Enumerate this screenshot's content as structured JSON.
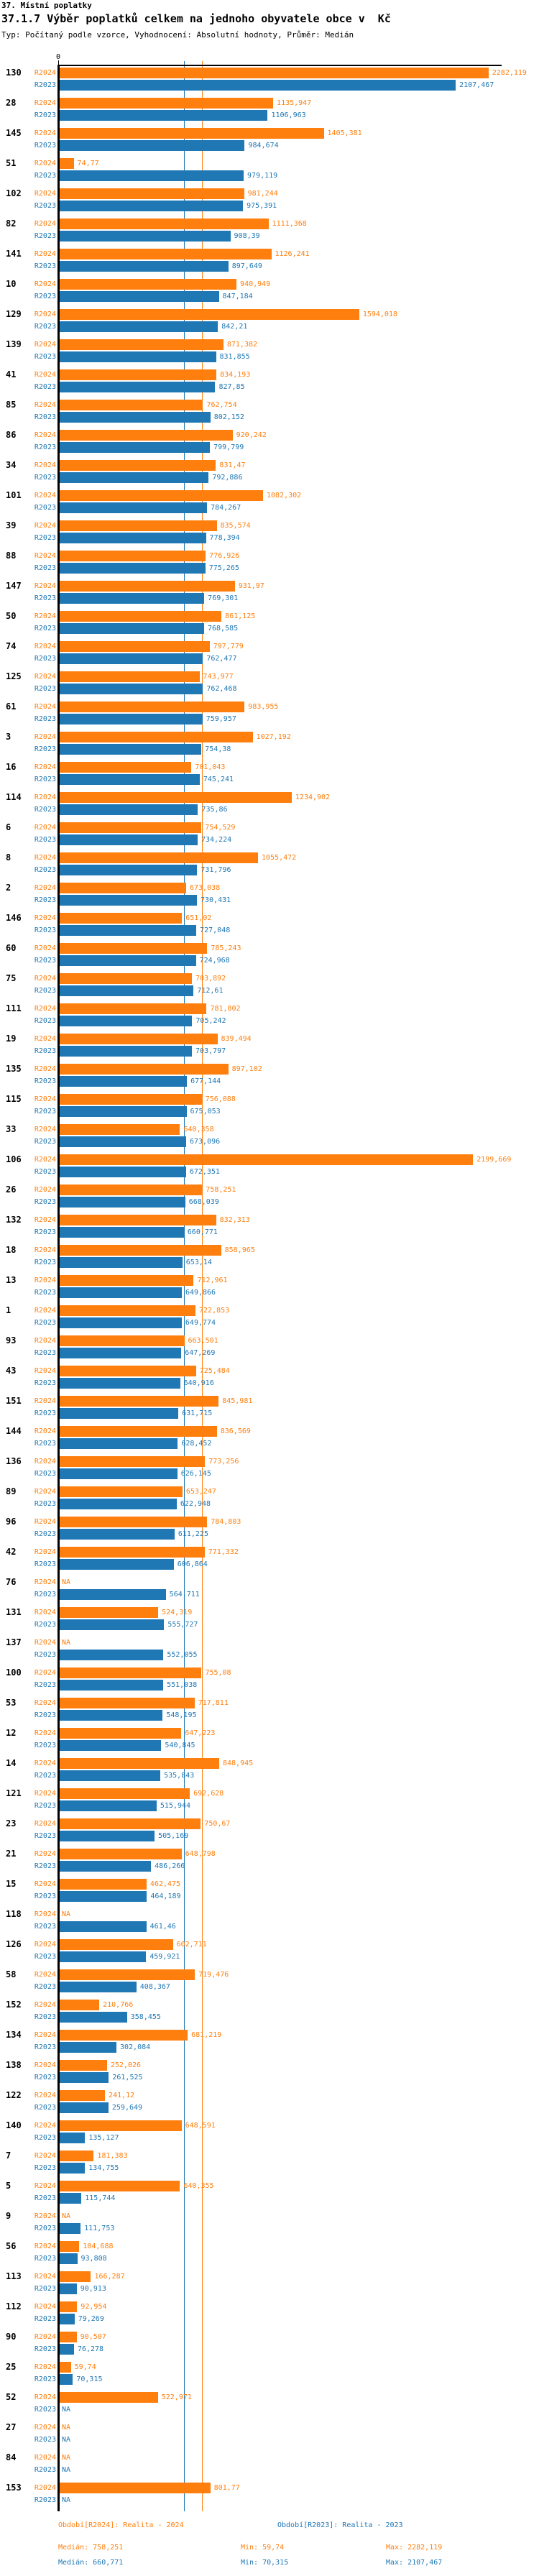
{
  "header": {
    "title1": "37. Místní poplatky",
    "title2": "37.1.7 Výběr poplatků celkem na jednoho obyvatele obce v  Kč",
    "subtitle": "Typ: Počítaný podle vzorce, Vyhodnocení: Absolutní hodnoty, Průměr: Medián"
  },
  "chart_data": {
    "type": "bar",
    "orientation": "horizontal",
    "x_axis": {
      "zero_label": "0",
      "xlim": [
        0,
        2330
      ],
      "grid": false
    },
    "series_labels": {
      "r2024": "R2024",
      "r2023": "R2023"
    },
    "colors": {
      "r2024": "#ff7f0e",
      "r2023": "#1f77b4"
    },
    "median_lines": {
      "r2024": 758.251,
      "r2023": 660.771
    },
    "na_text": "NA",
    "groups": [
      {
        "id": "130",
        "r2024": "2282,119",
        "r2023": "2107,467"
      },
      {
        "id": "28",
        "r2024": "1135,947",
        "r2023": "1106,963"
      },
      {
        "id": "145",
        "r2024": "1405,381",
        "r2023": "984,674"
      },
      {
        "id": "51",
        "r2024": "74,77",
        "r2023": "979,119"
      },
      {
        "id": "102",
        "r2024": "981,244",
        "r2023": "975,391"
      },
      {
        "id": "82",
        "r2024": "1111,368",
        "r2023": "908,39"
      },
      {
        "id": "141",
        "r2024": "1126,241",
        "r2023": "897,649"
      },
      {
        "id": "10",
        "r2024": "940,949",
        "r2023": "847,184"
      },
      {
        "id": "129",
        "r2024": "1594,018",
        "r2023": "842,21"
      },
      {
        "id": "139",
        "r2024": "871,382",
        "r2023": "831,855"
      },
      {
        "id": "41",
        "r2024": "834,193",
        "r2023": "827,85"
      },
      {
        "id": "85",
        "r2024": "762,754",
        "r2023": "802,152"
      },
      {
        "id": "86",
        "r2024": "920,242",
        "r2023": "799,799"
      },
      {
        "id": "34",
        "r2024": "831,47",
        "r2023": "792,886"
      },
      {
        "id": "101",
        "r2024": "1082,302",
        "r2023": "784,267"
      },
      {
        "id": "39",
        "r2024": "835,574",
        "r2023": "778,394"
      },
      {
        "id": "88",
        "r2024": "776,926",
        "r2023": "775,265"
      },
      {
        "id": "147",
        "r2024": "931,97",
        "r2023": "769,301"
      },
      {
        "id": "50",
        "r2024": "861,125",
        "r2023": "768,585"
      },
      {
        "id": "74",
        "r2024": "797,779",
        "r2023": "762,477"
      },
      {
        "id": "125",
        "r2024": "743,977",
        "r2023": "762,468"
      },
      {
        "id": "61",
        "r2024": "983,955",
        "r2023": "759,957"
      },
      {
        "id": "3",
        "r2024": "1027,192",
        "r2023": "754,38"
      },
      {
        "id": "16",
        "r2024": "701,043",
        "r2023": "745,241"
      },
      {
        "id": "114",
        "r2024": "1234,902",
        "r2023": "735,86"
      },
      {
        "id": "6",
        "r2024": "754,529",
        "r2023": "734,224"
      },
      {
        "id": "8",
        "r2024": "1055,472",
        "r2023": "731,796"
      },
      {
        "id": "2",
        "r2024": "673,038",
        "r2023": "730,431"
      },
      {
        "id": "146",
        "r2024": "651,02",
        "r2023": "727,048"
      },
      {
        "id": "60",
        "r2024": "785,243",
        "r2023": "724,968"
      },
      {
        "id": "75",
        "r2024": "703,892",
        "r2023": "712,61"
      },
      {
        "id": "111",
        "r2024": "781,802",
        "r2023": "705,242"
      },
      {
        "id": "19",
        "r2024": "839,494",
        "r2023": "703,797"
      },
      {
        "id": "135",
        "r2024": "897,102",
        "r2023": "677,144"
      },
      {
        "id": "115",
        "r2024": "756,088",
        "r2023": "675,053"
      },
      {
        "id": "33",
        "r2024": "640,358",
        "r2023": "673,096"
      },
      {
        "id": "106",
        "r2024": "2199,669",
        "r2023": "672,351"
      },
      {
        "id": "26",
        "r2024": "758,251",
        "r2023": "668,039"
      },
      {
        "id": "132",
        "r2024": "832,313",
        "r2023": "660,771"
      },
      {
        "id": "18",
        "r2024": "858,965",
        "r2023": "653,14"
      },
      {
        "id": "13",
        "r2024": "712,961",
        "r2023": "649,866"
      },
      {
        "id": "1",
        "r2024": "722,853",
        "r2023": "649,774"
      },
      {
        "id": "93",
        "r2024": "663,501",
        "r2023": "647,269"
      },
      {
        "id": "43",
        "r2024": "725,484",
        "r2023": "640,916"
      },
      {
        "id": "151",
        "r2024": "845,981",
        "r2023": "631,715"
      },
      {
        "id": "144",
        "r2024": "836,569",
        "r2023": "628,452"
      },
      {
        "id": "136",
        "r2024": "773,256",
        "r2023": "626,145"
      },
      {
        "id": "89",
        "r2024": "653,247",
        "r2023": "622,948"
      },
      {
        "id": "96",
        "r2024": "784,803",
        "r2023": "611,225"
      },
      {
        "id": "42",
        "r2024": "771,332",
        "r2023": "606,864"
      },
      {
        "id": "76",
        "r2024": "NA",
        "r2023": "564,711"
      },
      {
        "id": "131",
        "r2024": "524,319",
        "r2023": "555,727"
      },
      {
        "id": "137",
        "r2024": "NA",
        "r2023": "552,055"
      },
      {
        "id": "100",
        "r2024": "755,08",
        "r2023": "551,038"
      },
      {
        "id": "53",
        "r2024": "717,811",
        "r2023": "548,195"
      },
      {
        "id": "12",
        "r2024": "647,223",
        "r2023": "540,845"
      },
      {
        "id": "14",
        "r2024": "848,945",
        "r2023": "535,843"
      },
      {
        "id": "121",
        "r2024": "692,628",
        "r2023": "515,944"
      },
      {
        "id": "23",
        "r2024": "750,67",
        "r2023": "505,169"
      },
      {
        "id": "21",
        "r2024": "648,798",
        "r2023": "486,266"
      },
      {
        "id": "15",
        "r2024": "462,475",
        "r2023": "464,189"
      },
      {
        "id": "118",
        "r2024": "NA",
        "r2023": "461,46"
      },
      {
        "id": "126",
        "r2024": "602,711",
        "r2023": "459,921"
      },
      {
        "id": "58",
        "r2024": "719,476",
        "r2023": "408,367"
      },
      {
        "id": "152",
        "r2024": "210,766",
        "r2023": "358,455"
      },
      {
        "id": "134",
        "r2024": "681,219",
        "r2023": "302,084"
      },
      {
        "id": "138",
        "r2024": "252,026",
        "r2023": "261,525"
      },
      {
        "id": "122",
        "r2024": "241,12",
        "r2023": "259,649"
      },
      {
        "id": "140",
        "r2024": "648,591",
        "r2023": "135,127"
      },
      {
        "id": "7",
        "r2024": "181,383",
        "r2023": "134,755"
      },
      {
        "id": "5",
        "r2024": "640,355",
        "r2023": "115,744"
      },
      {
        "id": "9",
        "r2024": "NA",
        "r2023": "111,753"
      },
      {
        "id": "56",
        "r2024": "104,688",
        "r2023": "93,808"
      },
      {
        "id": "113",
        "r2024": "166,287",
        "r2023": "90,913"
      },
      {
        "id": "112",
        "r2024": "92,954",
        "r2023": "79,269"
      },
      {
        "id": "90",
        "r2024": "90,507",
        "r2023": "76,278"
      },
      {
        "id": "25",
        "r2024": "59,74",
        "r2023": "70,315"
      },
      {
        "id": "52",
        "r2024": "522,971",
        "r2023": "NA"
      },
      {
        "id": "27",
        "r2024": "NA",
        "r2023": "NA"
      },
      {
        "id": "84",
        "r2024": "NA",
        "r2023": "NA"
      },
      {
        "id": "153",
        "r2024": "801,77",
        "r2023": "NA"
      }
    ]
  },
  "footer": {
    "legend_r2024": "Období[R2024]: Realita - 2024",
    "legend_r2023": "Období[R2023]: Realita - 2023",
    "r2024_median": "Medián: 758,251",
    "r2024_min": "Min: 59,74",
    "r2024_max": "Max: 2282,119",
    "r2023_median": "Medián: 660,771",
    "r2023_min": "Min: 70,315",
    "r2023_max": "Max: 2107,467"
  }
}
